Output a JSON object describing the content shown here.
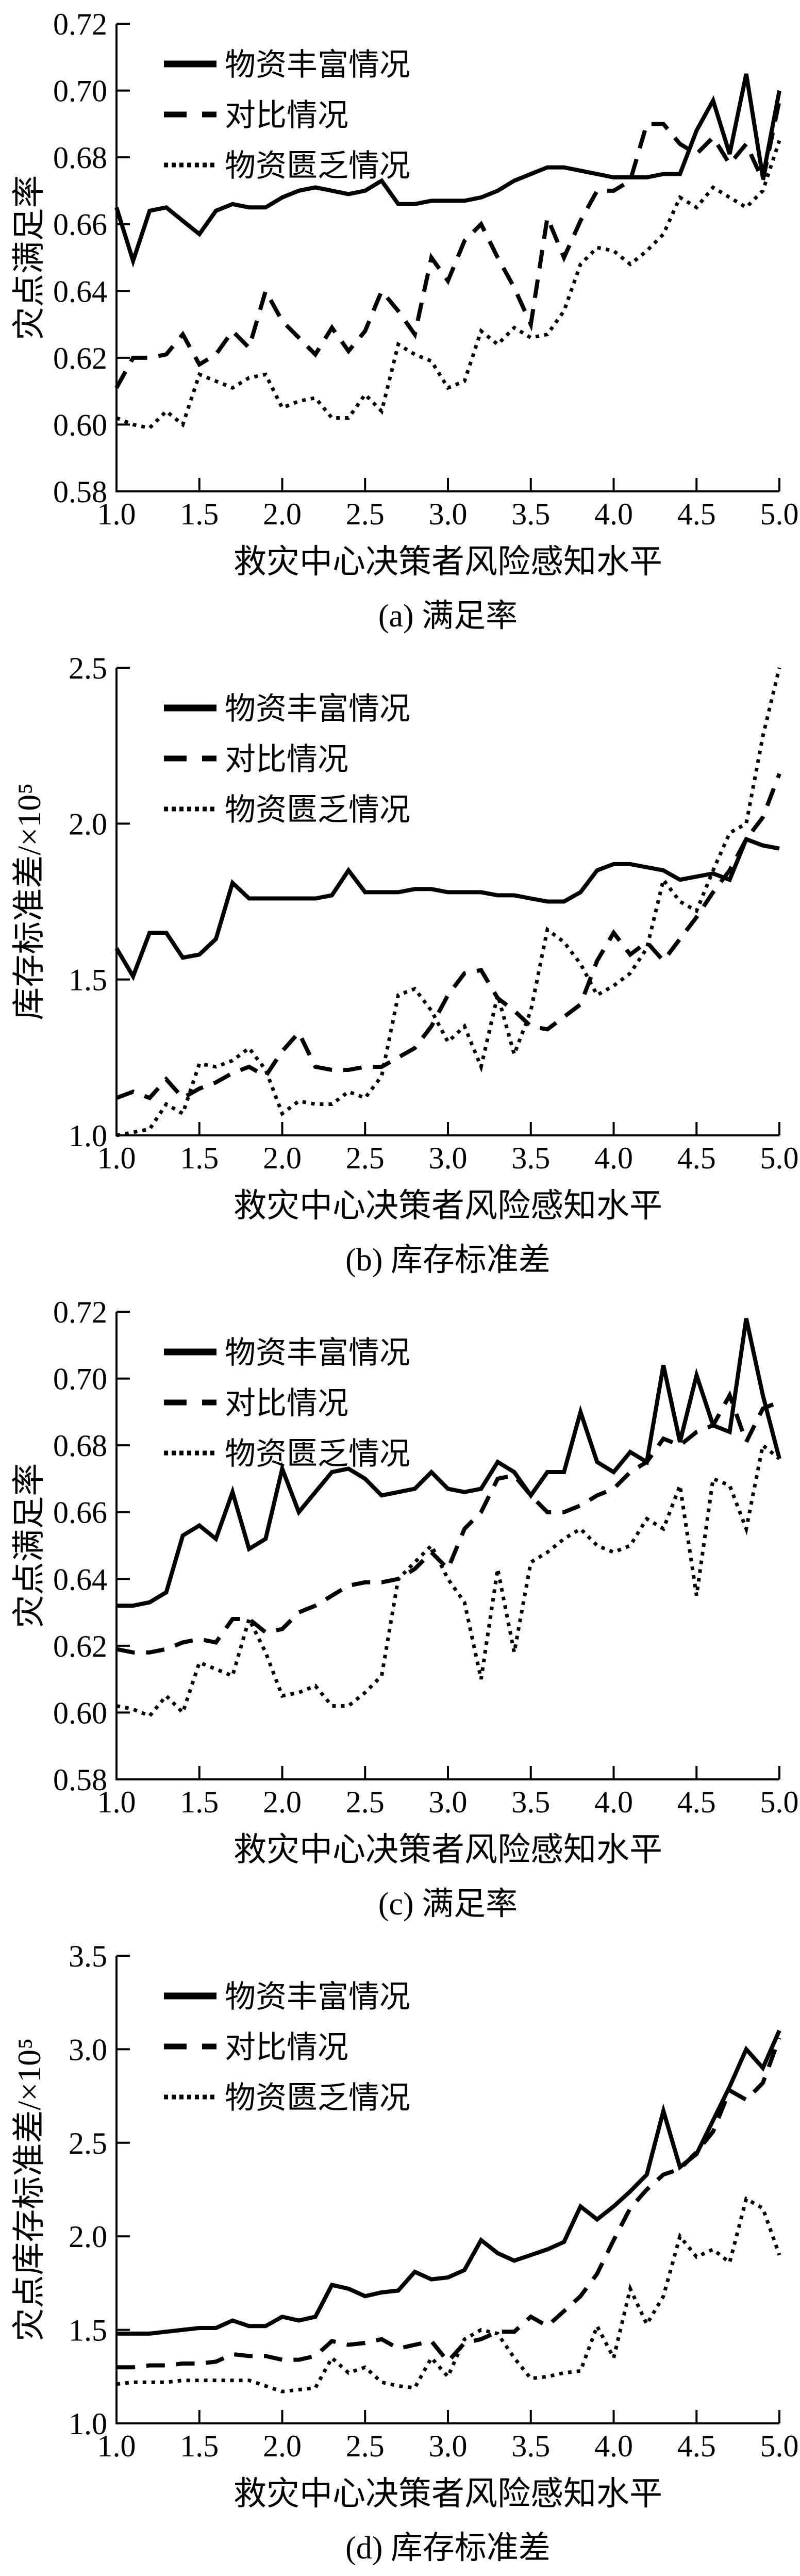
{
  "page": {
    "background": "#ffffff",
    "ink": "#000000",
    "figure_description": "四幅救灾仿真结果折线图 (a)-(d)"
  },
  "legend": {
    "items": [
      {
        "label": "物资丰富情况",
        "style": "solid"
      },
      {
        "label": "对比情况",
        "style": "dashed"
      },
      {
        "label": "物资匮乏情况",
        "style": "dotted"
      }
    ]
  },
  "chart_data": [
    {
      "id": "a",
      "type": "line",
      "caption": "(a) 满足率",
      "xlabel": "救灾中心决策者风险感知水平",
      "ylabel": "灾点满足率",
      "xlim": [
        1.0,
        5.0
      ],
      "ylim": [
        0.58,
        0.72
      ],
      "x_start": 1.0,
      "x_step": 0.1,
      "grid": false,
      "legend_position": "top-left",
      "x_tick_labels": [
        "1.0",
        "1.5",
        "2.0",
        "2.5",
        "3.0",
        "3.5",
        "4.0",
        "4.5",
        "5.0"
      ],
      "y_tick_labels": [
        "0.58",
        "0.60",
        "0.62",
        "0.64",
        "0.66",
        "0.68",
        "0.70",
        "0.72"
      ],
      "series": [
        {
          "name": "物资丰富情况",
          "style": "solid",
          "values": [
            0.665,
            0.649,
            0.664,
            0.665,
            0.661,
            0.657,
            0.664,
            0.666,
            0.665,
            0.665,
            0.668,
            0.67,
            0.671,
            0.67,
            0.669,
            0.67,
            0.673,
            0.666,
            0.666,
            0.667,
            0.667,
            0.667,
            0.668,
            0.67,
            0.673,
            0.675,
            0.677,
            0.677,
            0.676,
            0.675,
            0.674,
            0.674,
            0.674,
            0.675,
            0.675,
            0.688,
            0.697,
            0.681,
            0.705,
            0.674,
            0.7
          ]
        },
        {
          "name": "对比情况",
          "style": "dashed",
          "values": [
            0.611,
            0.62,
            0.62,
            0.621,
            0.627,
            0.618,
            0.621,
            0.628,
            0.623,
            0.64,
            0.631,
            0.626,
            0.621,
            0.629,
            0.622,
            0.628,
            0.64,
            0.634,
            0.627,
            0.65,
            0.643,
            0.655,
            0.66,
            0.65,
            0.641,
            0.63,
            0.662,
            0.65,
            0.661,
            0.67,
            0.67,
            0.673,
            0.69,
            0.69,
            0.684,
            0.681,
            0.686,
            0.678,
            0.684,
            0.673,
            0.697
          ]
        },
        {
          "name": "物资匮乏情况",
          "style": "dotted",
          "values": [
            0.602,
            0.6,
            0.599,
            0.604,
            0.6,
            0.615,
            0.613,
            0.611,
            0.614,
            0.615,
            0.605,
            0.607,
            0.608,
            0.602,
            0.602,
            0.609,
            0.604,
            0.624,
            0.621,
            0.619,
            0.611,
            0.613,
            0.628,
            0.624,
            0.629,
            0.626,
            0.627,
            0.634,
            0.648,
            0.653,
            0.652,
            0.648,
            0.652,
            0.657,
            0.668,
            0.665,
            0.671,
            0.668,
            0.665,
            0.67,
            0.685
          ]
        }
      ]
    },
    {
      "id": "b",
      "type": "line",
      "caption": "(b) 库存标准差",
      "xlabel": "救灾中心决策者风险感知水平",
      "ylabel": "库存标准差/×10⁵",
      "xlim": [
        1.0,
        5.0
      ],
      "ylim": [
        1.0,
        2.5
      ],
      "x_start": 1.0,
      "x_step": 0.1,
      "grid": false,
      "legend_position": "top-left",
      "x_tick_labels": [
        "1.0",
        "1.5",
        "2.0",
        "2.5",
        "3.0",
        "3.5",
        "4.0",
        "4.5",
        "5.0"
      ],
      "y_tick_labels": [
        "1.0",
        "1.5",
        "2.0",
        "2.5"
      ],
      "series": [
        {
          "name": "物资丰富情况",
          "style": "solid",
          "values": [
            1.6,
            1.51,
            1.65,
            1.65,
            1.57,
            1.58,
            1.63,
            1.81,
            1.76,
            1.76,
            1.76,
            1.76,
            1.76,
            1.77,
            1.85,
            1.78,
            1.78,
            1.78,
            1.79,
            1.79,
            1.78,
            1.78,
            1.78,
            1.77,
            1.77,
            1.76,
            1.75,
            1.75,
            1.78,
            1.85,
            1.87,
            1.87,
            1.86,
            1.85,
            1.82,
            1.83,
            1.84,
            1.82,
            1.95,
            1.93,
            1.92
          ]
        },
        {
          "name": "对比情况",
          "style": "dashed",
          "values": [
            1.12,
            1.14,
            1.12,
            1.18,
            1.12,
            1.15,
            1.17,
            1.2,
            1.22,
            1.19,
            1.27,
            1.33,
            1.22,
            1.21,
            1.21,
            1.22,
            1.22,
            1.25,
            1.28,
            1.35,
            1.45,
            1.52,
            1.53,
            1.44,
            1.4,
            1.35,
            1.34,
            1.38,
            1.42,
            1.56,
            1.65,
            1.58,
            1.62,
            1.56,
            1.63,
            1.7,
            1.78,
            1.85,
            1.95,
            2.02,
            2.16
          ]
        },
        {
          "name": "物资匮乏情况",
          "style": "dotted",
          "values": [
            1.0,
            1.01,
            1.02,
            1.1,
            1.07,
            1.23,
            1.22,
            1.24,
            1.28,
            1.21,
            1.07,
            1.11,
            1.1,
            1.1,
            1.14,
            1.12,
            1.19,
            1.45,
            1.47,
            1.4,
            1.3,
            1.35,
            1.22,
            1.45,
            1.26,
            1.4,
            1.66,
            1.62,
            1.55,
            1.45,
            1.48,
            1.52,
            1.6,
            1.82,
            1.75,
            1.72,
            1.85,
            1.97,
            2.0,
            2.28,
            2.5
          ]
        }
      ]
    },
    {
      "id": "c",
      "type": "line",
      "caption": "(c) 满足率",
      "xlabel": "救灾中心决策者风险感知水平",
      "ylabel": "灾点满足率",
      "xlim": [
        1.0,
        5.0
      ],
      "ylim": [
        0.58,
        0.72
      ],
      "x_start": 1.0,
      "x_step": 0.1,
      "grid": false,
      "legend_position": "top-left",
      "x_tick_labels": [
        "1.0",
        "1.5",
        "2.0",
        "2.5",
        "3.0",
        "3.5",
        "4.0",
        "4.5",
        "5.0"
      ],
      "y_tick_labels": [
        "0.58",
        "0.60",
        "0.62",
        "0.64",
        "0.66",
        "0.68",
        "0.70",
        "0.72"
      ],
      "series": [
        {
          "name": "物资丰富情况",
          "style": "solid",
          "values": [
            0.632,
            0.632,
            0.633,
            0.636,
            0.653,
            0.656,
            0.652,
            0.666,
            0.649,
            0.652,
            0.673,
            0.66,
            0.666,
            0.672,
            0.673,
            0.67,
            0.665,
            0.666,
            0.667,
            0.672,
            0.667,
            0.666,
            0.667,
            0.675,
            0.672,
            0.665,
            0.672,
            0.672,
            0.69,
            0.675,
            0.672,
            0.678,
            0.675,
            0.704,
            0.681,
            0.701,
            0.686,
            0.684,
            0.718,
            0.695,
            0.676
          ]
        },
        {
          "name": "对比情况",
          "style": "dashed",
          "values": [
            0.619,
            0.618,
            0.618,
            0.619,
            0.621,
            0.622,
            0.621,
            0.628,
            0.628,
            0.624,
            0.625,
            0.63,
            0.632,
            0.635,
            0.638,
            0.639,
            0.639,
            0.64,
            0.643,
            0.648,
            0.643,
            0.655,
            0.66,
            0.67,
            0.671,
            0.665,
            0.66,
            0.66,
            0.662,
            0.665,
            0.667,
            0.672,
            0.675,
            0.682,
            0.68,
            0.684,
            0.686,
            0.695,
            0.681,
            0.691,
            0.693
          ]
        },
        {
          "name": "物资匮乏情况",
          "style": "dotted",
          "values": [
            0.602,
            0.601,
            0.599,
            0.605,
            0.6,
            0.615,
            0.613,
            0.611,
            0.628,
            0.618,
            0.605,
            0.606,
            0.608,
            0.602,
            0.602,
            0.606,
            0.611,
            0.64,
            0.645,
            0.65,
            0.64,
            0.633,
            0.61,
            0.643,
            0.618,
            0.645,
            0.648,
            0.652,
            0.655,
            0.65,
            0.648,
            0.65,
            0.658,
            0.655,
            0.668,
            0.635,
            0.67,
            0.668,
            0.655,
            0.68,
            0.676
          ]
        }
      ]
    },
    {
      "id": "d",
      "type": "line",
      "caption": "(d) 库存标准差",
      "xlabel": "救灾中心决策者风险感知水平",
      "ylabel": "灾点库存标准差/×10⁵",
      "xlim": [
        1.0,
        5.0
      ],
      "ylim": [
        1.0,
        3.5
      ],
      "x_start": 1.0,
      "x_step": 0.1,
      "grid": false,
      "legend_position": "top-left",
      "x_tick_labels": [
        "1.0",
        "1.5",
        "2.0",
        "2.5",
        "3.0",
        "3.5",
        "4.0",
        "4.5",
        "5.0"
      ],
      "y_tick_labels": [
        "1.0",
        "1.5",
        "2.0",
        "2.5",
        "3.0",
        "3.5"
      ],
      "series": [
        {
          "name": "物资丰富情况",
          "style": "solid",
          "values": [
            1.48,
            1.48,
            1.48,
            1.49,
            1.5,
            1.51,
            1.51,
            1.55,
            1.52,
            1.52,
            1.57,
            1.55,
            1.57,
            1.74,
            1.72,
            1.68,
            1.7,
            1.71,
            1.81,
            1.77,
            1.78,
            1.82,
            1.98,
            1.91,
            1.87,
            1.9,
            1.93,
            1.97,
            2.16,
            2.09,
            2.16,
            2.24,
            2.33,
            2.67,
            2.37,
            2.44,
            2.62,
            2.8,
            3.0,
            2.9,
            3.1
          ]
        },
        {
          "name": "对比情况",
          "style": "dashed",
          "values": [
            1.3,
            1.3,
            1.31,
            1.31,
            1.32,
            1.32,
            1.33,
            1.37,
            1.36,
            1.36,
            1.34,
            1.34,
            1.36,
            1.44,
            1.42,
            1.43,
            1.45,
            1.4,
            1.42,
            1.44,
            1.33,
            1.43,
            1.45,
            1.49,
            1.49,
            1.57,
            1.52,
            1.6,
            1.68,
            1.8,
            1.98,
            2.15,
            2.25,
            2.33,
            2.36,
            2.45,
            2.56,
            2.78,
            2.73,
            2.82,
            3.06
          ]
        },
        {
          "name": "物资匮乏情况",
          "style": "dotted",
          "values": [
            1.21,
            1.22,
            1.22,
            1.22,
            1.23,
            1.23,
            1.23,
            1.23,
            1.23,
            1.2,
            1.17,
            1.18,
            1.19,
            1.35,
            1.27,
            1.3,
            1.22,
            1.2,
            1.19,
            1.35,
            1.25,
            1.45,
            1.5,
            1.48,
            1.35,
            1.24,
            1.25,
            1.27,
            1.28,
            1.52,
            1.35,
            1.72,
            1.53,
            1.68,
            2.0,
            1.89,
            1.93,
            1.86,
            2.2,
            2.15,
            1.9
          ]
        }
      ]
    }
  ]
}
